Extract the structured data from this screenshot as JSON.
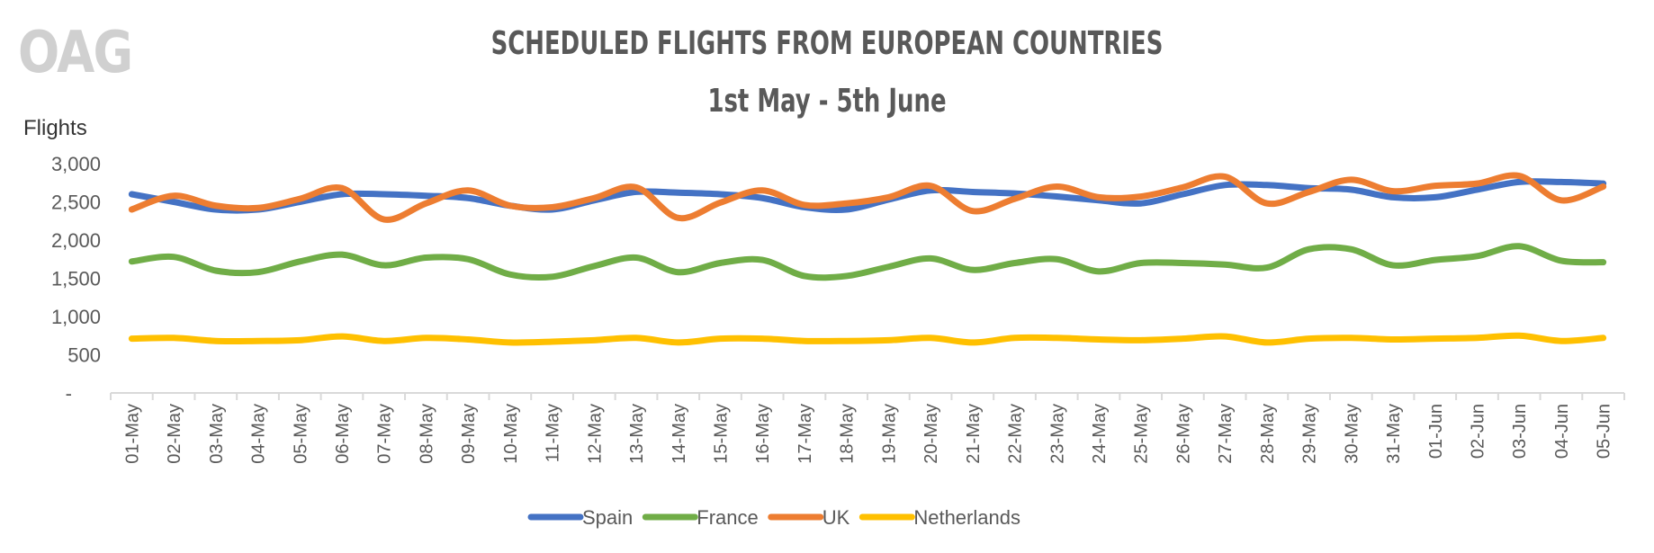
{
  "logo": "OAG",
  "chart_data": {
    "type": "line",
    "title": "SCHEDULED FLIGHTS FROM EUROPEAN COUNTRIES",
    "subtitle": "1st May - 5th June",
    "ylabel": "Flights",
    "xlabel": "",
    "ylim": [
      0,
      3000
    ],
    "yticks": [
      0,
      500,
      1000,
      1500,
      2000,
      2500,
      3000
    ],
    "ytick_labels": [
      "-",
      "500",
      "1,000",
      "1,500",
      "2,000",
      "2,500",
      "3,000"
    ],
    "grid": false,
    "smoothed": true,
    "legend_position": "bottom",
    "categories": [
      "01-May",
      "02-May",
      "03-May",
      "04-May",
      "05-May",
      "06-May",
      "07-May",
      "08-May",
      "09-May",
      "10-May",
      "11-May",
      "12-May",
      "13-May",
      "14-May",
      "15-May",
      "16-May",
      "17-May",
      "18-May",
      "19-May",
      "20-May",
      "21-May",
      "22-May",
      "23-May",
      "24-May",
      "25-May",
      "26-May",
      "27-May",
      "28-May",
      "29-May",
      "30-May",
      "31-May",
      "01-Jun",
      "02-Jun",
      "03-Jun",
      "04-Jun",
      "05-Jun"
    ],
    "series": [
      {
        "name": "Spain",
        "color": "#4472C4",
        "values": [
          2600,
          2500,
          2400,
          2400,
          2500,
          2600,
          2600,
          2580,
          2550,
          2450,
          2400,
          2520,
          2630,
          2620,
          2600,
          2550,
          2430,
          2400,
          2530,
          2650,
          2630,
          2610,
          2570,
          2520,
          2480,
          2600,
          2720,
          2720,
          2680,
          2660,
          2560,
          2560,
          2660,
          2760,
          2760,
          2740
        ]
      },
      {
        "name": "France",
        "color": "#70AD47",
        "values": [
          1720,
          1780,
          1600,
          1580,
          1720,
          1810,
          1670,
          1770,
          1750,
          1550,
          1520,
          1660,
          1770,
          1580,
          1700,
          1740,
          1530,
          1530,
          1650,
          1760,
          1610,
          1700,
          1750,
          1590,
          1700,
          1700,
          1680,
          1640,
          1880,
          1880,
          1670,
          1740,
          1790,
          1920,
          1730,
          1710
        ]
      },
      {
        "name": "UK",
        "color": "#ED7D31",
        "values": [
          2400,
          2580,
          2450,
          2420,
          2540,
          2680,
          2270,
          2480,
          2650,
          2450,
          2430,
          2550,
          2690,
          2290,
          2490,
          2650,
          2460,
          2480,
          2560,
          2710,
          2380,
          2540,
          2700,
          2560,
          2570,
          2690,
          2830,
          2480,
          2630,
          2790,
          2640,
          2710,
          2740,
          2840,
          2520,
          2700
        ]
      },
      {
        "name": "Netherlands",
        "color": "#FFC000",
        "values": [
          710,
          720,
          680,
          680,
          690,
          740,
          680,
          720,
          700,
          660,
          670,
          690,
          720,
          660,
          710,
          710,
          680,
          680,
          690,
          720,
          660,
          720,
          720,
          700,
          690,
          710,
          740,
          660,
          710,
          720,
          700,
          710,
          720,
          750,
          680,
          720
        ]
      }
    ]
  }
}
